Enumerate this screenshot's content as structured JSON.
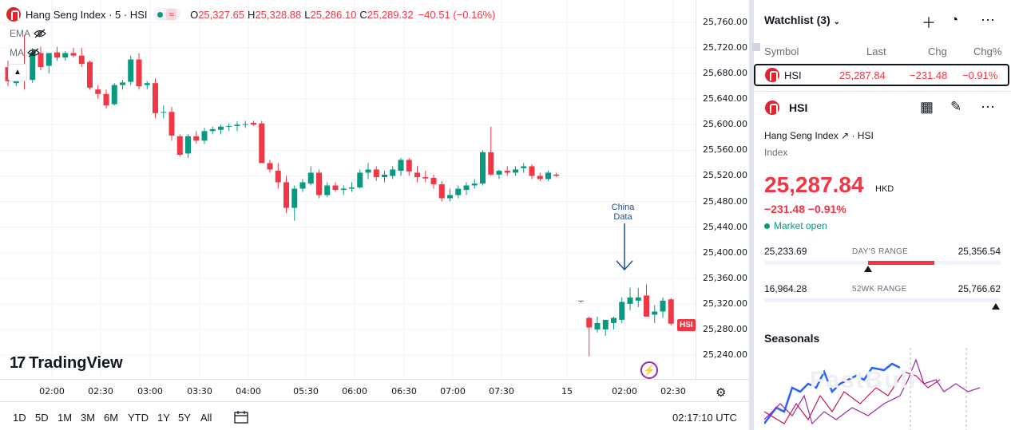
{
  "legend": {
    "symbol_title": "Hang Seng Index · 5 · HSI",
    "approx": "≈",
    "o_label": "O",
    "o_value": "25,327.65",
    "h_label": "H",
    "h_value": "25,328.88",
    "l_label": "L",
    "l_value": "25,286.10",
    "c_label": "C",
    "c_value": "25,289.32",
    "change": "−40.51 (−0.16%)"
  },
  "indicators": [
    "EMA",
    "MA"
  ],
  "collapse_icon": "chevron-up-icon",
  "annotation": {
    "line1": "China",
    "line2": "Data"
  },
  "branding": {
    "mark": "17",
    "word": "TradingView"
  },
  "price_tag": "HSI",
  "price_scale": [
    "25,760.00",
    "25,720.00",
    "25,680.00",
    "25,640.00",
    "25,600.00",
    "25,560.00",
    "25,520.00",
    "25,480.00",
    "25,440.00",
    "25,400.00",
    "25,360.00",
    "25,320.00",
    "25,280.00",
    "25,240.00"
  ],
  "time_scale": [
    "02:00",
    "02:30",
    "03:00",
    "03:30",
    "04:00",
    "05:30",
    "06:00",
    "06:30",
    "07:00",
    "07:30",
    "15",
    "02:00",
    "02:30"
  ],
  "range_buttons": [
    "1D",
    "5D",
    "1M",
    "3M",
    "6M",
    "YTD",
    "1Y",
    "5Y",
    "All"
  ],
  "clock": "02:17:10 UTC",
  "colors": {
    "up": "#089981",
    "down": "#f23645",
    "annotation": "#1f4e99",
    "accent": "#2962ff"
  },
  "watchlist": {
    "title": "Watchlist (3)",
    "columns": {
      "symbol": "Symbol",
      "last": "Last",
      "chg": "Chg",
      "chgp": "Chg%"
    },
    "rows": [
      {
        "symbol": "HSI",
        "last": "25,287.84",
        "chg": "−231.48",
        "chgp": "−0.91%"
      }
    ]
  },
  "detail": {
    "symbol": "HSI",
    "name": "Hang Seng Index ↗ · HSI",
    "type": "Index",
    "price": "25,287.84",
    "currency": "HKD",
    "change": "−231.48  −0.91%",
    "market_status": "Market open",
    "days_range": {
      "low": "25,233.69",
      "label": "DAY'S RANGE",
      "high": "25,356.54",
      "fill_start": 0.44,
      "fill_end": 0.72,
      "marker": 0.44
    },
    "wk52_range": {
      "low": "16,964.28",
      "label": "52WK RANGE",
      "high": "25,766.62",
      "marker": 0.98
    }
  },
  "seasonals": {
    "title": "Seasonals",
    "watermark": "FastBull"
  },
  "chart_data": {
    "type": "candlestick",
    "ylim": [
      25220,
      25780
    ],
    "candles": [
      {
        "o": 25690,
        "h": 25700,
        "l": 25660,
        "c": 25668
      },
      {
        "o": 25665,
        "h": 25690,
        "l": 25660,
        "c": 25688
      },
      {
        "o": 25688,
        "h": 25740,
        "l": 25655,
        "c": 25672
      },
      {
        "o": 25670,
        "h": 25720,
        "l": 25665,
        "c": 25713
      },
      {
        "o": 25712,
        "h": 25722,
        "l": 25685,
        "c": 25690
      },
      {
        "o": 25692,
        "h": 25712,
        "l": 25680,
        "c": 25712
      },
      {
        "o": 25713,
        "h": 25722,
        "l": 25700,
        "c": 25705
      },
      {
        "o": 25705,
        "h": 25715,
        "l": 25700,
        "c": 25712
      },
      {
        "o": 25712,
        "h": 25720,
        "l": 25705,
        "c": 25708
      },
      {
        "o": 25708,
        "h": 25720,
        "l": 25690,
        "c": 25695
      },
      {
        "o": 25698,
        "h": 25700,
        "l": 25655,
        "c": 25658
      },
      {
        "o": 25655,
        "h": 25662,
        "l": 25640,
        "c": 25648
      },
      {
        "o": 25648,
        "h": 25655,
        "l": 25625,
        "c": 25630
      },
      {
        "o": 25632,
        "h": 25665,
        "l": 25630,
        "c": 25662
      },
      {
        "o": 25662,
        "h": 25670,
        "l": 25655,
        "c": 25666
      },
      {
        "o": 25667,
        "h": 25708,
        "l": 25662,
        "c": 25702
      },
      {
        "o": 25702,
        "h": 25712,
        "l": 25655,
        "c": 25660
      },
      {
        "o": 25662,
        "h": 25668,
        "l": 25655,
        "c": 25665
      },
      {
        "o": 25665,
        "h": 25672,
        "l": 25610,
        "c": 25618
      },
      {
        "o": 25620,
        "h": 25630,
        "l": 25610,
        "c": 25620
      },
      {
        "o": 25620,
        "h": 25628,
        "l": 25575,
        "c": 25583
      },
      {
        "o": 25582,
        "h": 25585,
        "l": 25550,
        "c": 25553
      },
      {
        "o": 25555,
        "h": 25585,
        "l": 25548,
        "c": 25582
      },
      {
        "o": 25582,
        "h": 25590,
        "l": 25570,
        "c": 25575
      },
      {
        "o": 25575,
        "h": 25595,
        "l": 25570,
        "c": 25590
      },
      {
        "o": 25590,
        "h": 25597,
        "l": 25585,
        "c": 25593
      },
      {
        "o": 25592,
        "h": 25600,
        "l": 25585,
        "c": 25597
      },
      {
        "o": 25597,
        "h": 25602,
        "l": 25590,
        "c": 25598
      },
      {
        "o": 25598,
        "h": 25605,
        "l": 25590,
        "c": 25600
      },
      {
        "o": 25600,
        "h": 25606,
        "l": 25595,
        "c": 25601
      },
      {
        "o": 25603,
        "h": 25606,
        "l": 25598,
        "c": 25600
      },
      {
        "o": 25602,
        "h": 25606,
        "l": 25540,
        "c": 25540
      },
      {
        "o": 25540,
        "h": 25545,
        "l": 25525,
        "c": 25530
      },
      {
        "o": 25528,
        "h": 25540,
        "l": 25500,
        "c": 25510
      },
      {
        "o": 25510,
        "h": 25520,
        "l": 25462,
        "c": 25470
      },
      {
        "o": 25470,
        "h": 25505,
        "l": 25450,
        "c": 25500
      },
      {
        "o": 25500,
        "h": 25515,
        "l": 25495,
        "c": 25510
      },
      {
        "o": 25508,
        "h": 25535,
        "l": 25505,
        "c": 25525
      },
      {
        "o": 25525,
        "h": 25530,
        "l": 25485,
        "c": 25490
      },
      {
        "o": 25490,
        "h": 25510,
        "l": 25487,
        "c": 25505
      },
      {
        "o": 25505,
        "h": 25510,
        "l": 25495,
        "c": 25498
      },
      {
        "o": 25498,
        "h": 25505,
        "l": 25490,
        "c": 25500
      },
      {
        "o": 25500,
        "h": 25510,
        "l": 25495,
        "c": 25502
      },
      {
        "o": 25502,
        "h": 25530,
        "l": 25500,
        "c": 25525
      },
      {
        "o": 25525,
        "h": 25540,
        "l": 25515,
        "c": 25530
      },
      {
        "o": 25530,
        "h": 25535,
        "l": 25512,
        "c": 25518
      },
      {
        "o": 25518,
        "h": 25528,
        "l": 25510,
        "c": 25522
      },
      {
        "o": 25520,
        "h": 25535,
        "l": 25515,
        "c": 25530
      },
      {
        "o": 25528,
        "h": 25548,
        "l": 25520,
        "c": 25545
      },
      {
        "o": 25545,
        "h": 25548,
        "l": 25520,
        "c": 25527
      },
      {
        "o": 25525,
        "h": 25535,
        "l": 25510,
        "c": 25518
      },
      {
        "o": 25518,
        "h": 25528,
        "l": 25510,
        "c": 25516
      },
      {
        "o": 25517,
        "h": 25522,
        "l": 25500,
        "c": 25507
      },
      {
        "o": 25507,
        "h": 25512,
        "l": 25480,
        "c": 25485
      },
      {
        "o": 25485,
        "h": 25500,
        "l": 25480,
        "c": 25490
      },
      {
        "o": 25490,
        "h": 25505,
        "l": 25485,
        "c": 25500
      },
      {
        "o": 25498,
        "h": 25510,
        "l": 25490,
        "c": 25505
      },
      {
        "o": 25505,
        "h": 25515,
        "l": 25500,
        "c": 25508
      },
      {
        "o": 25508,
        "h": 25560,
        "l": 25505,
        "c": 25557
      },
      {
        "o": 25557,
        "h": 25597,
        "l": 25520,
        "c": 25522
      },
      {
        "o": 25522,
        "h": 25530,
        "l": 25515,
        "c": 25528
      },
      {
        "o": 25528,
        "h": 25535,
        "l": 25520,
        "c": 25525
      },
      {
        "o": 25525,
        "h": 25535,
        "l": 25520,
        "c": 25530
      },
      {
        "o": 25532,
        "h": 25540,
        "l": 25525,
        "c": 25535
      },
      {
        "o": 25535,
        "h": 25538,
        "l": 25515,
        "c": 25520
      },
      {
        "o": 25520,
        "h": 25525,
        "l": 25512,
        "c": 25515
      },
      {
        "o": 25515,
        "h": 25528,
        "l": 25512,
        "c": 25525
      },
      {
        "o": 25522,
        "h": 25525,
        "l": 25518,
        "c": 25520
      },
      {
        "gap": true
      },
      {
        "gap": true
      },
      {
        "o": 25325,
        "h": 25325,
        "l": 25322,
        "c": 25324
      },
      {
        "o": 25298,
        "h": 25300,
        "l": 25238,
        "c": 25283
      },
      {
        "o": 25280,
        "h": 25300,
        "l": 25275,
        "c": 25290
      },
      {
        "o": 25280,
        "h": 25295,
        "l": 25270,
        "c": 25295
      },
      {
        "o": 25290,
        "h": 25300,
        "l": 25280,
        "c": 25298
      },
      {
        "o": 25295,
        "h": 25330,
        "l": 25290,
        "c": 25323
      },
      {
        "o": 25320,
        "h": 25345,
        "l": 25310,
        "c": 25330
      },
      {
        "o": 25325,
        "h": 25345,
        "l": 25315,
        "c": 25330
      },
      {
        "o": 25333,
        "h": 25350,
        "l": 25300,
        "c": 25300
      },
      {
        "o": 25303,
        "h": 25318,
        "l": 25290,
        "c": 25308
      },
      {
        "o": 25308,
        "h": 25330,
        "l": 25298,
        "c": 25325
      },
      {
        "o": 25327,
        "h": 25329,
        "l": 25286,
        "c": 25289
      }
    ]
  }
}
